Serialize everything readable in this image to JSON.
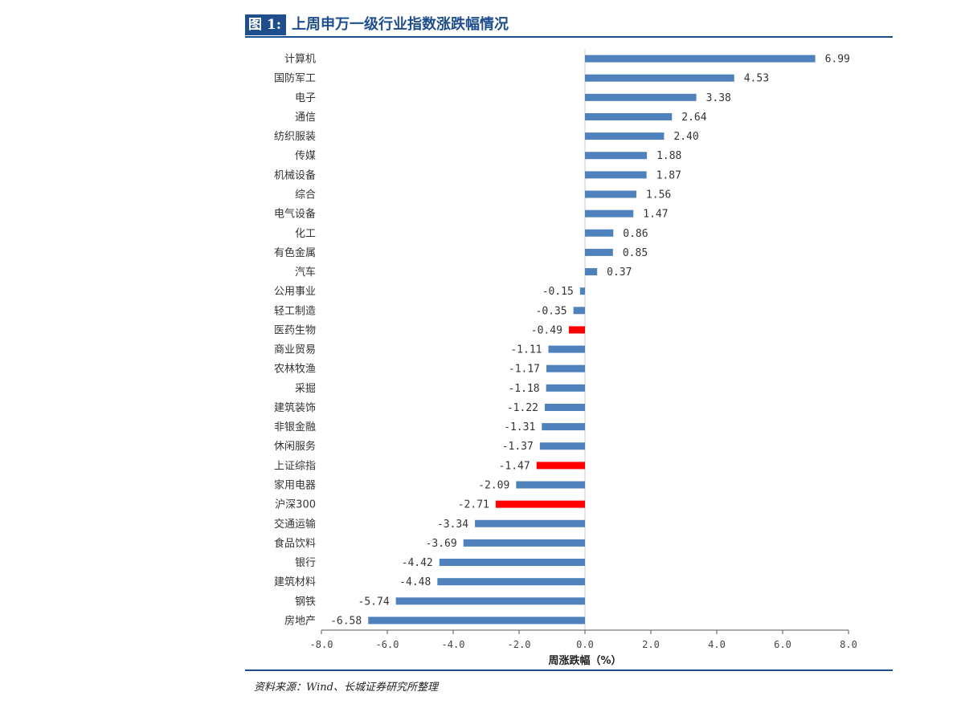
{
  "header": {
    "figure_label": "图 1:",
    "figure_title": "上周申万一级行业指数涨跌幅情况"
  },
  "footer": {
    "source": "资料来源：Wind、长城证券研究所整理"
  },
  "colors": {
    "bar": "#4f81bd",
    "highlight": "#ff0000",
    "accent": "#1f4e8c"
  },
  "chart_data": {
    "type": "bar",
    "orientation": "horizontal",
    "title": "上周申万一级行业指数涨跌幅情况",
    "xlabel": "周涨跌幅（%）",
    "ylabel": "",
    "xlim": [
      -8.0,
      8.0
    ],
    "ticks": [
      -8.0,
      -6.0,
      -4.0,
      -2.0,
      0.0,
      2.0,
      4.0,
      6.0,
      8.0
    ],
    "tick_labels": [
      "-8.0",
      "-6.0",
      "-4.0",
      "-2.0",
      "0.0",
      "2.0",
      "4.0",
      "6.0",
      "8.0"
    ],
    "categories": [
      "计算机",
      "国防军工",
      "电子",
      "通信",
      "纺织服装",
      "传媒",
      "机械设备",
      "综合",
      "电气设备",
      "化工",
      "有色金属",
      "汽车",
      "公用事业",
      "轻工制造",
      "医药生物",
      "商业贸易",
      "农林牧渔",
      "采掘",
      "建筑装饰",
      "非银金融",
      "休闲服务",
      "上证综指",
      "家用电器",
      "沪深300",
      "交通运输",
      "食品饮料",
      "银行",
      "建筑材料",
      "钢铁",
      "房地产"
    ],
    "values": [
      6.99,
      4.53,
      3.38,
      2.64,
      2.4,
      1.88,
      1.87,
      1.56,
      1.47,
      0.86,
      0.85,
      0.37,
      -0.15,
      -0.35,
      -0.49,
      -1.11,
      -1.17,
      -1.18,
      -1.22,
      -1.31,
      -1.37,
      -1.47,
      -2.09,
      -2.71,
      -3.34,
      -3.69,
      -4.42,
      -4.48,
      -5.74,
      -6.58
    ],
    "value_labels": [
      "6.99",
      "4.53",
      "3.38",
      "2.64",
      "2.40",
      "1.88",
      "1.87",
      "1.56",
      "1.47",
      "0.86",
      "0.85",
      "0.37",
      "-0.15",
      "-0.35",
      "-0.49",
      "-1.11",
      "-1.17",
      "-1.18",
      "-1.22",
      "-1.31",
      "-1.37",
      "-1.47",
      "-2.09",
      "-2.71",
      "-3.34",
      "-3.69",
      "-4.42",
      "-4.48",
      "-5.74",
      "-6.58"
    ],
    "highlighted": [
      "医药生物",
      "上证综指",
      "沪深300"
    ]
  }
}
